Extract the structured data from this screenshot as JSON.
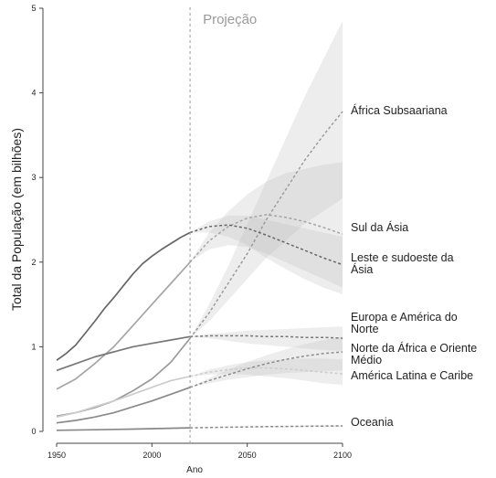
{
  "chart_data": {
    "type": "line",
    "ylabel": "Total da População (em bilhões)",
    "xlabel": "Ano",
    "xlim": [
      1950,
      2100
    ],
    "ylim": [
      0,
      5
    ],
    "xticks": [
      1950,
      2000,
      2050,
      2100
    ],
    "yticks": [
      0,
      1,
      2,
      3,
      4,
      5
    ],
    "projection": {
      "x": 2020,
      "label": "Projeção"
    },
    "colors": {
      "axis": "#444444",
      "text": "#222222",
      "projection": "#9a9a9a",
      "band": "#bfbfbf"
    },
    "series": [
      {
        "name": "África Subsaariana",
        "label_lines": [
          "África Subsaariana"
        ],
        "color": "#9a9a9a",
        "historical": {
          "x": [
            1950,
            1960,
            1970,
            1980,
            1990,
            2000,
            2010,
            2020
          ],
          "y": [
            0.18,
            0.22,
            0.28,
            0.36,
            0.48,
            0.62,
            0.82,
            1.1
          ]
        },
        "projection": {
          "x": [
            2020,
            2030,
            2040,
            2050,
            2060,
            2070,
            2080,
            2090,
            2100
          ],
          "y": [
            1.1,
            1.4,
            1.75,
            2.1,
            2.5,
            2.85,
            3.2,
            3.5,
            3.78
          ]
        },
        "band_lower": [
          1.1,
          1.3,
          1.55,
          1.8,
          2.05,
          2.25,
          2.45,
          2.6,
          2.75
        ],
        "band_upper": [
          1.1,
          1.5,
          1.95,
          2.45,
          2.95,
          3.45,
          3.95,
          4.4,
          4.85
        ]
      },
      {
        "name": "Sul da Ásia",
        "label_lines": [
          "Sul da Ásia"
        ],
        "color": "#a5a5a5",
        "historical": {
          "x": [
            1950,
            1960,
            1970,
            1980,
            1990,
            2000,
            2010,
            2020
          ],
          "y": [
            0.5,
            0.62,
            0.8,
            1.0,
            1.25,
            1.5,
            1.75,
            2.0
          ]
        },
        "projection": {
          "x": [
            2020,
            2030,
            2040,
            2050,
            2060,
            2070,
            2080,
            2090,
            2100
          ],
          "y": [
            2.0,
            2.25,
            2.42,
            2.52,
            2.56,
            2.53,
            2.48,
            2.41,
            2.33
          ]
        },
        "band_lower": [
          2.0,
          2.15,
          2.2,
          2.18,
          2.1,
          2.0,
          1.9,
          1.8,
          1.7
        ],
        "band_upper": [
          2.0,
          2.35,
          2.6,
          2.8,
          2.95,
          3.05,
          3.1,
          3.15,
          3.18
        ]
      },
      {
        "name": "Leste e sudoeste da Ásia",
        "label_lines": [
          "Leste e sudoeste da",
          "Ásia"
        ],
        "color": "#666666",
        "historical": {
          "x": [
            1950,
            1955,
            1960,
            1965,
            1970,
            1975,
            1980,
            1985,
            1990,
            1995,
            2000,
            2005,
            2010,
            2015,
            2020
          ],
          "y": [
            0.84,
            0.92,
            1.02,
            1.16,
            1.3,
            1.45,
            1.58,
            1.72,
            1.86,
            1.98,
            2.07,
            2.15,
            2.22,
            2.29,
            2.35
          ]
        },
        "projection": {
          "x": [
            2020,
            2030,
            2040,
            2050,
            2060,
            2070,
            2080,
            2090,
            2100
          ],
          "y": [
            2.35,
            2.42,
            2.44,
            2.4,
            2.32,
            2.23,
            2.14,
            2.05,
            1.97
          ]
        },
        "band_lower": [
          2.35,
          2.35,
          2.3,
          2.2,
          2.05,
          1.92,
          1.8,
          1.7,
          1.62
        ],
        "band_upper": [
          2.35,
          2.48,
          2.55,
          2.55,
          2.5,
          2.45,
          2.4,
          2.35,
          2.3
        ]
      },
      {
        "name": "Europa e América do Norte",
        "label_lines": [
          "Europa e América do",
          "Norte"
        ],
        "color": "#777777",
        "historical": {
          "x": [
            1950,
            1960,
            1970,
            1980,
            1990,
            2000,
            2010,
            2020
          ],
          "y": [
            0.72,
            0.8,
            0.88,
            0.94,
            1.0,
            1.04,
            1.08,
            1.12
          ]
        },
        "projection": {
          "x": [
            2020,
            2030,
            2040,
            2050,
            2060,
            2070,
            2080,
            2090,
            2100
          ],
          "y": [
            1.12,
            1.13,
            1.13,
            1.13,
            1.12,
            1.12,
            1.11,
            1.11,
            1.1
          ]
        },
        "band_lower": [
          1.12,
          1.1,
          1.07,
          1.04,
          1.02,
          1.0,
          0.98,
          0.96,
          0.95
        ],
        "band_upper": [
          1.12,
          1.15,
          1.17,
          1.19,
          1.2,
          1.21,
          1.22,
          1.23,
          1.24
        ]
      },
      {
        "name": "Norte da África e Oriente Médio",
        "label_lines": [
          "Norte da África e Oriente",
          "Médio"
        ],
        "color": "#8a8a8a",
        "historical": {
          "x": [
            1950,
            1960,
            1970,
            1980,
            1990,
            2000,
            2010,
            2020
          ],
          "y": [
            0.1,
            0.13,
            0.17,
            0.22,
            0.29,
            0.36,
            0.44,
            0.52
          ]
        },
        "projection": {
          "x": [
            2020,
            2030,
            2040,
            2050,
            2060,
            2070,
            2080,
            2090,
            2100
          ],
          "y": [
            0.52,
            0.6,
            0.67,
            0.74,
            0.8,
            0.85,
            0.89,
            0.92,
            0.94
          ]
        },
        "band_lower": [
          0.52,
          0.57,
          0.61,
          0.64,
          0.67,
          0.69,
          0.7,
          0.71,
          0.72
        ],
        "band_upper": [
          0.52,
          0.63,
          0.73,
          0.82,
          0.9,
          0.97,
          1.03,
          1.08,
          1.12
        ]
      },
      {
        "name": "América Latina e Caribe",
        "label_lines": [
          "América Latina e Caribe"
        ],
        "color": "#cccccc",
        "historical": {
          "x": [
            1950,
            1960,
            1970,
            1980,
            1990,
            2000,
            2010,
            2020
          ],
          "y": [
            0.17,
            0.22,
            0.29,
            0.36,
            0.44,
            0.52,
            0.6,
            0.65
          ]
        },
        "projection": {
          "x": [
            2020,
            2030,
            2040,
            2050,
            2060,
            2070,
            2080,
            2090,
            2100
          ],
          "y": [
            0.65,
            0.7,
            0.73,
            0.75,
            0.75,
            0.74,
            0.72,
            0.7,
            0.68
          ]
        },
        "band_lower": [
          0.65,
          0.67,
          0.68,
          0.67,
          0.65,
          0.63,
          0.6,
          0.57,
          0.55
        ],
        "band_upper": [
          0.65,
          0.73,
          0.78,
          0.82,
          0.84,
          0.85,
          0.86,
          0.86,
          0.85
        ]
      },
      {
        "name": "Oceania",
        "label_lines": [
          "Oceania"
        ],
        "color": "#888888",
        "historical": {
          "x": [
            1950,
            1970,
            1990,
            2020
          ],
          "y": [
            0.013,
            0.019,
            0.027,
            0.042
          ]
        },
        "projection": {
          "x": [
            2020,
            2040,
            2060,
            2080,
            2100
          ],
          "y": [
            0.042,
            0.05,
            0.056,
            0.06,
            0.065
          ]
        },
        "band_lower": [
          0.042,
          0.045,
          0.048,
          0.05,
          0.052
        ],
        "band_upper": [
          0.042,
          0.055,
          0.064,
          0.07,
          0.076
        ]
      }
    ]
  }
}
